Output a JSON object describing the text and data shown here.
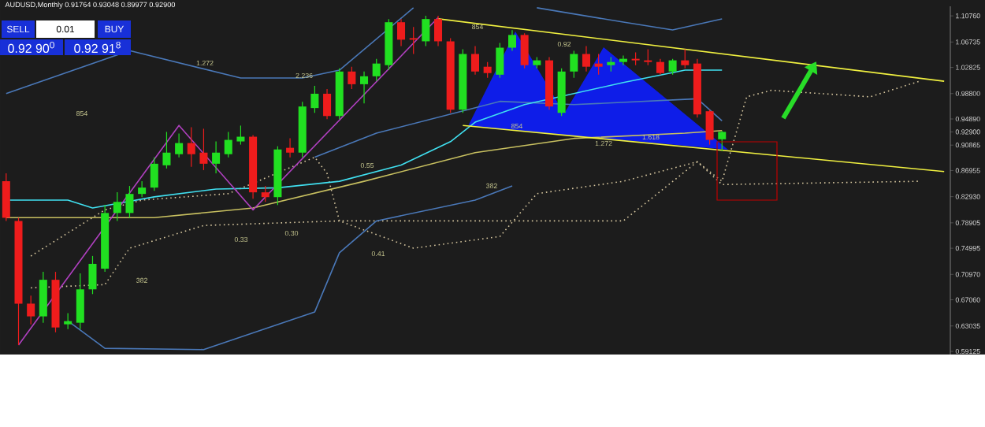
{
  "chart_data": {
    "type": "candlestick",
    "title": "AUDUSD,Monthly  0.91764 0.93048 0.89977 0.92900",
    "categories": [
      null,
      null,
      null,
      null,
      null,
      null,
      null,
      null,
      null,
      null,
      null,
      null,
      null,
      null,
      null,
      null,
      null,
      null,
      null,
      null,
      null,
      null,
      null,
      null,
      null,
      null,
      null,
      null,
      null,
      null,
      null,
      null,
      null,
      null,
      null,
      null,
      null,
      null,
      null,
      null,
      null,
      null,
      null,
      null,
      null,
      null,
      null,
      null,
      null,
      null,
      null,
      null,
      null,
      null,
      null,
      null,
      null,
      null,
      null,
      null,
      null,
      null,
      null,
      null,
      null,
      null,
      null,
      null,
      null,
      null,
      null,
      null,
      null,
      null,
      null,
      null,
      null
    ],
    "ohlc": [
      [
        0.8531,
        0.8653,
        0.7919,
        0.7968
      ],
      [
        0.7919,
        0.7968,
        0.6011,
        0.6647
      ],
      [
        0.6647,
        0.6769,
        0.6329,
        0.6451
      ],
      [
        0.6451,
        0.7136,
        0.6353,
        0.7014
      ],
      [
        0.7014,
        0.7136,
        0.6206,
        0.628
      ],
      [
        0.6329,
        0.65,
        0.6255,
        0.6378
      ],
      [
        0.6353,
        0.7112,
        0.6255,
        0.6867
      ],
      [
        0.6867,
        0.7381,
        0.6794,
        0.7259
      ],
      [
        0.7185,
        0.8164,
        0.7136,
        0.8042
      ],
      [
        0.8042,
        0.836,
        0.7919,
        0.8213
      ],
      [
        0.8042,
        0.8458,
        0.7968,
        0.8335
      ],
      [
        0.8335,
        0.8531,
        0.8286,
        0.8433
      ],
      [
        0.8433,
        0.8898,
        0.8384,
        0.88
      ],
      [
        0.8776,
        0.929,
        0.8727,
        0.8971
      ],
      [
        0.8947,
        0.9265,
        0.8898,
        0.9118
      ],
      [
        0.9118,
        0.9363,
        0.8751,
        0.8947
      ],
      [
        0.8971,
        0.9339,
        0.8702,
        0.88
      ],
      [
        0.88,
        0.9143,
        0.8653,
        0.8971
      ],
      [
        0.8947,
        0.929,
        0.8898,
        0.9167
      ],
      [
        0.9143,
        0.9387,
        0.9094,
        0.9216
      ],
      [
        0.9216,
        0.9241,
        0.8262,
        0.836
      ],
      [
        0.836,
        0.8458,
        0.8213,
        0.8286
      ],
      [
        0.8286,
        0.9069,
        0.8164,
        0.902
      ],
      [
        0.9045,
        0.9192,
        0.8898,
        0.8971
      ],
      [
        0.8971,
        0.9754,
        0.8898,
        0.9681
      ],
      [
        0.9657,
        0.9999,
        0.9583,
        0.9877
      ],
      [
        0.9877,
        0.995,
        0.9485,
        0.9534
      ],
      [
        0.9534,
        1.0268,
        0.9485,
        1.0219
      ],
      [
        1.0219,
        1.0293,
        0.995,
        1.0024
      ],
      [
        1.0024,
        1.0219,
        0.973,
        1.0146
      ],
      [
        1.0146,
        1.0415,
        1.0073,
        1.0342
      ],
      [
        1.0317,
        1.1027,
        1.0244,
        1.0978
      ],
      [
        1.0978,
        1.1027,
        1.0611,
        1.0709
      ],
      [
        1.0733,
        1.0905,
        1.0489,
        1.0709
      ],
      [
        1.0684,
        1.1076,
        1.0611,
        1.1027
      ],
      [
        1.1027,
        1.1076,
        1.0611,
        1.0684
      ],
      [
        1.0684,
        1.0733,
        0.9583,
        0.9632
      ],
      [
        0.9632,
        1.0562,
        0.9583,
        1.0489
      ],
      [
        1.0489,
        1.0611,
        1.017,
        1.0219
      ],
      [
        1.0293,
        1.0366,
        1.0122,
        1.0195
      ],
      [
        1.017,
        1.066,
        1.0122,
        1.0586
      ],
      [
        1.0586,
        1.0856,
        1.0537,
        1.0782
      ],
      [
        1.0782,
        1.0807,
        1.0268,
        1.0317
      ],
      [
        1.0317,
        1.044,
        1.0268,
        1.0391
      ],
      [
        1.0391,
        1.044,
        0.9632,
        0.9681
      ],
      [
        0.9583,
        1.0268,
        0.9534,
        1.0219
      ],
      [
        1.0219,
        1.0537,
        1.0122,
        1.0489
      ],
      [
        1.0489,
        1.0611,
        1.0219,
        1.0293
      ],
      [
        1.0342,
        1.0489,
        1.017,
        1.0293
      ],
      [
        1.0317,
        1.044,
        1.0219,
        1.0366
      ],
      [
        1.0366,
        1.0464,
        1.0317,
        1.0415
      ],
      [
        1.0415,
        1.0513,
        1.0317,
        1.0391
      ],
      [
        1.0391,
        1.0562,
        1.0317,
        1.0366
      ],
      [
        1.0366,
        1.0415,
        1.017,
        1.0195
      ],
      [
        1.0219,
        1.0415,
        1.017,
        1.0391
      ],
      [
        1.0391,
        1.0562,
        1.0268,
        1.0317
      ],
      [
        1.0342,
        1.0415,
        0.951,
        0.9559
      ],
      [
        0.9608,
        0.9632,
        0.9094,
        0.9167
      ],
      [
        0.91764,
        0.93048,
        0.89977,
        0.929
      ],
      null,
      null,
      null,
      null,
      null,
      null,
      null,
      null,
      null,
      null,
      null,
      null,
      null,
      null,
      null,
      null,
      null,
      null
    ],
    "colors": [
      "#ee1c1c",
      "#ee1c1c",
      "#ee1c1c",
      "#21e021",
      "#ee1c1c",
      "#21e021",
      "#21e021",
      "#21e021",
      "#21e021",
      "#21e021",
      "#21e021",
      "#21e021",
      "#21e021",
      "#21e021",
      "#21e021",
      "#ee1c1c",
      "#ee1c1c",
      "#21e021",
      "#21e021",
      "#21e021",
      "#ee1c1c",
      "#ee1c1c",
      "#21e021",
      "#ee1c1c",
      "#21e021",
      "#21e021",
      "#ee1c1c",
      "#21e021",
      "#ee1c1c",
      "#21e021",
      "#21e021",
      "#21e021",
      "#ee1c1c",
      "#ee1c1c",
      "#21e021",
      "#ee1c1c",
      "#ee1c1c",
      "#21e021",
      "#ee1c1c",
      "#ee1c1c",
      "#21e021",
      "#21e021",
      "#ee1c1c",
      "#21e021",
      "#ee1c1c",
      "#21e021",
      "#21e021",
      "#ee1c1c",
      "#ee1c1c",
      "#21e021",
      "#21e021",
      "#ee1c1c",
      "#ee1c1c",
      "#ee1c1c",
      "#21e021",
      "#ee1c1c",
      "#ee1c1c",
      "#ee1c1c",
      "#21e021",
      null,
      null,
      null,
      null,
      null,
      null,
      null,
      null,
      null,
      null,
      null,
      null,
      null,
      null,
      null,
      null,
      null,
      null
    ],
    "ylim": [
      0.5864,
      1.1223
    ],
    "yticks": [
      {
        "value": 1.1076,
        "label": "1.10760"
      },
      {
        "value": 1.06735,
        "label": "1.06735"
      },
      {
        "value": 1.02825,
        "label": "1.02825"
      },
      {
        "value": 0.988,
        "label": "0.98800"
      },
      {
        "value": 0.9489,
        "label": "0.94890"
      },
      {
        "value": 0.929,
        "label": "0.92900"
      },
      {
        "value": 0.90865,
        "label": "0.90865"
      },
      {
        "value": 0.86955,
        "label": "0.86955"
      },
      {
        "value": 0.8293,
        "label": "0.82930"
      },
      {
        "value": 0.78905,
        "label": "0.78905"
      },
      {
        "value": 0.74995,
        "label": "0.74995"
      },
      {
        "value": 0.7097,
        "label": "0.70970"
      },
      {
        "value": 0.6706,
        "label": "0.67060"
      },
      {
        "value": 0.63035,
        "label": "0.63035"
      },
      {
        "value": 0.59125,
        "label": "0.59125"
      }
    ],
    "tick_labels": "y",
    "annotations": [
      "SELL",
      "0.01",
      "BUY",
      "0.92 90$^{0}$",
      "0.92 91$^{8}$",
      "1.272",
      "2.236",
      "854",
      "0.55",
      "382",
      "0.33",
      "0.30",
      "0.41",
      "382",
      "854",
      "0.92",
      "854",
      "1.272",
      "1.618"
    ],
    "series": [
      {
        "type": "line",
        "color": "#d8c8a0",
        "line_style": "dotted",
        "values": [
          null,
          null,
          0.738,
          null,
          null,
          null,
          null,
          null,
          0.809,
          null,
          null,
          0.824,
          null,
          null,
          null,
          null,
          null,
          null,
          0.834,
          null,
          null,
          null,
          null,
          null,
          null,
          0.89,
          0.865,
          0.792,
          null,
          null,
          null,
          null,
          null,
          null,
          null,
          null,
          null,
          null,
          null,
          null,
          0.792,
          null,
          null,
          null,
          null,
          null,
          null,
          null,
          null,
          null,
          0.792,
          null,
          null,
          null,
          null,
          null,
          0.883,
          null,
          0.853,
          null,
          0.983,
          null,
          0.993,
          null,
          null,
          null,
          null,
          null,
          null,
          null,
          0.983,
          null,
          null,
          null,
          1.007,
          null,
          null
        ]
      },
      {
        "type": "line",
        "color": "#d8c8a0",
        "line_style": "dotted",
        "values": [
          null,
          null,
          0.689,
          null,
          null,
          null,
          null,
          null,
          0.694,
          null,
          0.75,
          null,
          null,
          null,
          null,
          null,
          0.785,
          null,
          null,
          null,
          null,
          null,
          null,
          null,
          null,
          null,
          null,
          0.792,
          null,
          null,
          null,
          null,
          null,
          0.75,
          null,
          null,
          null,
          null,
          null,
          null,
          0.768,
          null,
          null,
          0.834,
          null,
          null,
          null,
          null,
          null,
          null,
          0.853,
          null,
          null,
          null,
          null,
          null,
          0.883,
          null,
          0.848,
          null,
          null,
          null,
          null,
          null,
          null,
          null,
          null,
          null,
          null,
          null,
          null,
          null,
          null,
          null,
          0.853,
          null,
          null
        ]
      },
      {
        "type": "line",
        "color": "#4a78b8",
        "values": [
          0.988,
          null,
          null,
          null,
          null,
          null,
          null,
          null,
          null,
          null,
          1.054,
          null,
          null,
          null,
          null,
          null,
          null,
          null,
          null,
          1.012,
          null,
          null,
          null,
          null,
          1.012,
          null,
          null,
          1.024,
          null,
          null,
          null,
          null,
          null,
          1.12,
          null,
          null,
          null,
          null,
          null,
          null,
          null,
          null,
          null,
          null,
          null,
          null,
          null,
          null,
          null,
          null,
          null,
          null,
          null,
          null,
          null,
          null,
          null,
          null,
          null,
          null,
          null,
          null,
          null,
          null,
          null,
          null,
          null,
          null,
          null,
          null,
          null,
          null,
          null,
          null,
          null,
          null,
          null
        ]
      },
      {
        "type": "line",
        "color": "#4a78b8",
        "values": [
          null,
          null,
          null,
          null,
          null,
          null,
          null,
          null,
          null,
          null,
          null,
          null,
          null,
          null,
          null,
          null,
          null,
          null,
          null,
          null,
          null,
          null,
          null,
          null,
          null,
          null,
          null,
          null,
          null,
          null,
          null,
          null,
          null,
          null,
          null,
          null,
          null,
          null,
          null,
          null,
          null,
          null,
          null,
          1.12,
          null,
          null,
          null,
          null,
          null,
          null,
          1.098,
          null,
          null,
          null,
          1.086,
          null,
          null,
          null,
          1.103,
          null,
          null,
          null,
          null,
          null,
          null,
          null,
          null,
          null,
          null,
          null,
          null,
          null,
          null,
          null,
          null,
          null,
          null
        ]
      },
      {
        "type": "line",
        "color": "#4a78b8",
        "values": [
          null,
          null,
          null,
          null,
          null,
          null,
          null,
          null,
          null,
          null,
          null,
          null,
          null,
          null,
          null,
          null,
          null,
          null,
          null,
          null,
          null,
          null,
          null,
          null,
          null,
          0.89,
          null,
          null,
          null,
          null,
          0.927,
          null,
          null,
          null,
          null,
          null,
          null,
          null,
          null,
          null,
          0.976,
          null,
          null,
          null,
          null,
          null,
          0.971,
          null,
          null,
          null,
          null,
          null,
          null,
          null,
          null,
          null,
          0.98,
          null,
          0.946,
          null,
          null,
          null,
          null,
          null,
          null,
          null,
          null,
          null,
          null,
          null,
          null,
          null,
          null,
          null,
          null,
          null,
          null
        ]
      },
      {
        "type": "line",
        "color": "#4a78b8",
        "values": [
          null,
          null,
          null,
          null,
          null,
          0.638,
          null,
          null,
          0.596,
          null,
          null,
          null,
          null,
          null,
          null,
          null,
          0.594,
          null,
          null,
          null,
          null,
          null,
          null,
          null,
          null,
          0.652,
          null,
          0.743,
          null,
          null,
          0.792,
          null,
          null,
          null,
          null,
          null,
          null,
          null,
          0.824,
          null,
          null,
          0.846,
          null,
          null,
          null,
          null,
          null,
          null,
          null,
          null,
          null,
          null,
          null,
          null,
          null,
          null,
          null,
          null,
          null,
          null,
          null,
          null,
          null,
          null,
          null,
          null,
          null,
          null,
          null,
          null,
          null,
          null,
          null,
          null,
          null,
          null,
          null
        ]
      },
      {
        "type": "line",
        "color": "#c8c060",
        "values": [
          0.797,
          null,
          null,
          null,
          null,
          null,
          null,
          null,
          null,
          null,
          null,
          null,
          0.797,
          null,
          null,
          null,
          null,
          null,
          null,
          null,
          0.812,
          null,
          null,
          null,
          null,
          null,
          null,
          null,
          null,
          0.853,
          null,
          null,
          null,
          null,
          null,
          null,
          null,
          null,
          0.897,
          null,
          null,
          null,
          null,
          null,
          null,
          null,
          0.919,
          null,
          null,
          null,
          null,
          null,
          null,
          null,
          null,
          0.927,
          null,
          null,
          0.931,
          null,
          null,
          null,
          null,
          null,
          null,
          null,
          null,
          null,
          null,
          null,
          null,
          null,
          null,
          null,
          null,
          null,
          null
        ]
      },
      {
        "type": "line",
        "color": "#40e0f0",
        "values": [
          0.824,
          null,
          null,
          null,
          null,
          0.824,
          null,
          0.812,
          null,
          null,
          null,
          null,
          0.829,
          null,
          null,
          null,
          null,
          0.841,
          null,
          null,
          null,
          null,
          0.843,
          null,
          null,
          null,
          null,
          0.853,
          null,
          null,
          null,
          null,
          0.878,
          null,
          null,
          null,
          0.914,
          null,
          0.944,
          null,
          null,
          null,
          0.971,
          null,
          null,
          null,
          0.988,
          null,
          null,
          null,
          1.005,
          null,
          null,
          null,
          null,
          1.024,
          null,
          null,
          1.024,
          null,
          null,
          null,
          null,
          null,
          null,
          null,
          null,
          null,
          null,
          null,
          null,
          null,
          null,
          null,
          null,
          null,
          null
        ]
      },
      {
        "type": "line",
        "color": "#b040c0",
        "values": [
          null,
          0.601,
          null,
          null,
          null,
          null,
          null,
          null,
          null,
          null,
          null,
          null,
          null,
          null,
          0.939,
          null,
          null,
          null,
          null,
          null,
          0.809,
          null,
          null,
          null,
          null,
          null,
          null,
          null,
          null,
          null,
          null,
          null,
          null,
          null,
          null,
          1.105,
          null,
          null,
          null,
          null,
          null,
          null,
          null,
          null,
          null,
          null,
          null,
          null,
          null,
          null,
          null,
          null,
          null,
          null,
          null,
          null,
          null,
          null,
          null,
          null,
          null,
          null,
          null,
          null,
          null,
          null,
          null,
          null,
          null,
          null,
          null,
          null,
          null,
          null,
          null,
          null,
          null
        ]
      },
      {
        "type": "line",
        "color": "#f0f040",
        "values": [
          null,
          null,
          null,
          null,
          null,
          null,
          null,
          null,
          null,
          null,
          null,
          null,
          null,
          null,
          null,
          null,
          null,
          null,
          null,
          null,
          null,
          null,
          null,
          null,
          null,
          null,
          null,
          null,
          null,
          null,
          null,
          null,
          null,
          null,
          null,
          1.103,
          null,
          null,
          null,
          null,
          null,
          null,
          null,
          null,
          null,
          null,
          null,
          null,
          null,
          null,
          null,
          null,
          null,
          null,
          null,
          null,
          null,
          null,
          null,
          null,
          null,
          null,
          null,
          null,
          null,
          null,
          null,
          null,
          null,
          null,
          null,
          null,
          null,
          null,
          null,
          null,
          1.007
        ]
      },
      {
        "type": "line",
        "color": "#f0f040",
        "values": [
          null,
          null,
          null,
          null,
          null,
          null,
          null,
          null,
          null,
          null,
          null,
          null,
          null,
          null,
          null,
          null,
          null,
          null,
          null,
          null,
          null,
          null,
          null,
          null,
          null,
          null,
          null,
          null,
          null,
          null,
          null,
          null,
          null,
          null,
          null,
          null,
          null,
          0.939,
          null,
          null,
          null,
          null,
          null,
          null,
          null,
          null,
          null,
          null,
          null,
          null,
          null,
          null,
          null,
          null,
          null,
          null,
          null,
          null,
          null,
          null,
          null,
          null,
          null,
          null,
          null,
          null,
          null,
          null,
          null,
          null,
          null,
          null,
          null,
          null,
          null,
          null,
          0.868
        ]
      }
    ]
  }
}
